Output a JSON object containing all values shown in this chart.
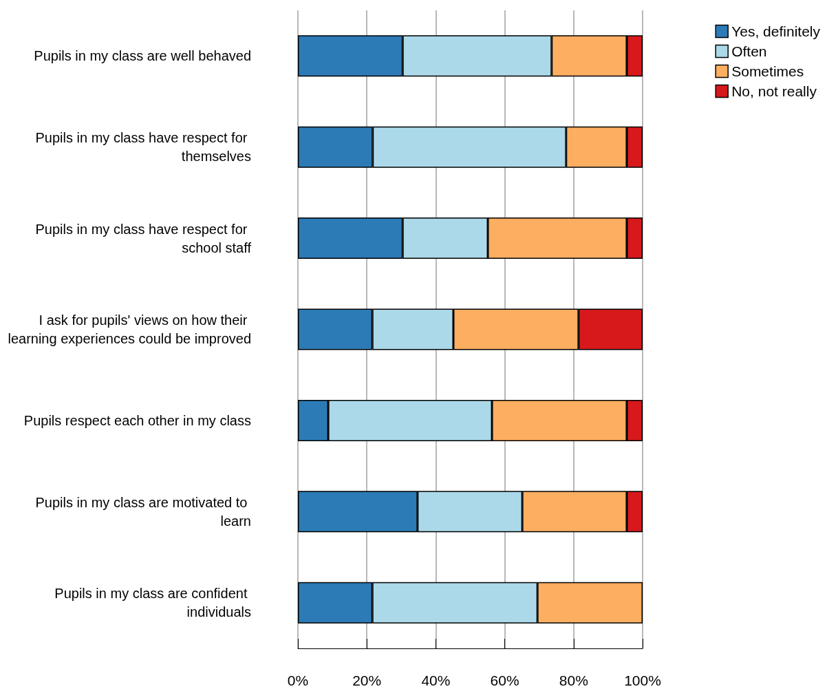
{
  "chart_data": {
    "type": "bar",
    "orientation": "horizontal",
    "stacked": true,
    "categories": [
      "Pupils in my class are well behaved",
      "Pupils in my class have respect for themselves",
      "Pupils in my class have respect for school staff",
      "I ask for pupils' views on how their learning experiences could be improved",
      "Pupils respect each other in my class",
      "Pupils in my class are motivated to learn",
      "Pupils in my class are confident individuals"
    ],
    "series": [
      {
        "name": "Yes, definitely",
        "color": "#2c7bb6",
        "values": [
          30.4,
          21.7,
          30.4,
          21.6,
          8.8,
          34.7,
          21.6
        ]
      },
      {
        "name": "Often",
        "color": "#abd9e9",
        "values": [
          43.2,
          56.1,
          24.7,
          23.5,
          47.5,
          30.4,
          47.9
        ]
      },
      {
        "name": "Sometimes",
        "color": "#fdae61",
        "values": [
          21.8,
          17.6,
          40.3,
          36.3,
          39.1,
          30.3,
          30.5
        ]
      },
      {
        "name": "No, not really",
        "color": "#d7191c",
        "values": [
          4.6,
          4.6,
          4.6,
          18.6,
          4.6,
          4.6,
          null
        ]
      }
    ],
    "xlim": [
      0,
      100
    ],
    "xticks": [
      {
        "value": 0,
        "label": "0%"
      },
      {
        "value": 20,
        "label": "20%"
      },
      {
        "value": 40,
        "label": "40%"
      },
      {
        "value": 60,
        "label": "60%"
      },
      {
        "value": 80,
        "label": "80%"
      },
      {
        "value": 100,
        "label": "100%"
      }
    ],
    "grid": "x",
    "legend": "top right"
  }
}
